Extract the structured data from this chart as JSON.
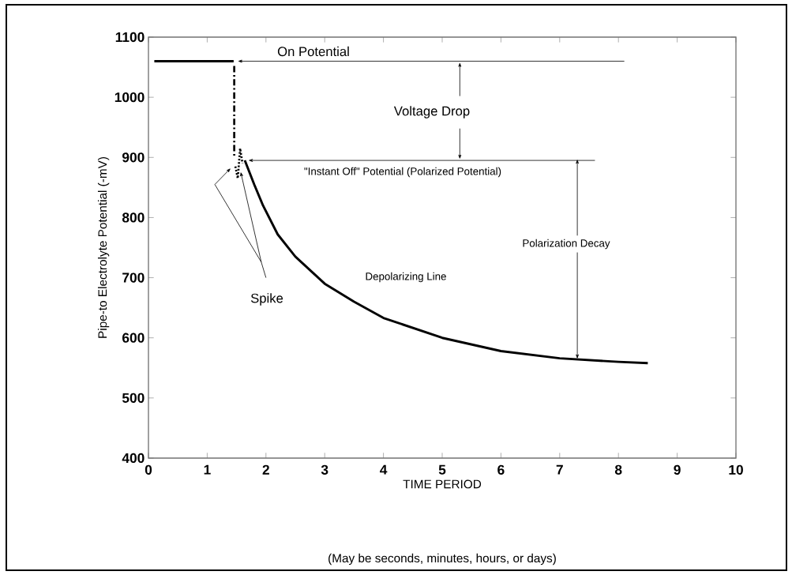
{
  "chart_data": {
    "type": "line",
    "xlabel": "TIME PERIOD",
    "ylabel": "Pipe-to Electrolyte Potential (-mV)",
    "xlim": [
      0,
      10
    ],
    "ylim": [
      400,
      1100
    ],
    "xticks": [
      0,
      1,
      2,
      3,
      4,
      5,
      6,
      7,
      8,
      9,
      10
    ],
    "yticks": [
      400,
      500,
      600,
      700,
      800,
      900,
      1000,
      1100
    ],
    "marker": "none",
    "series": [
      {
        "color": "#000000",
        "line_style": "solid",
        "x": [
          0.1,
          1.45
        ],
        "values": [
          1060,
          1060
        ]
      },
      {
        "color": "#000000",
        "line_style": "dashed",
        "x": [
          1.46,
          1.46
        ],
        "values": [
          1052,
          900
        ]
      },
      {
        "color": "#000000",
        "line_style": "dotted",
        "x": [
          1.48,
          1.52,
          1.56,
          1.6
        ],
        "values": [
          885,
          865,
          915,
          890
        ]
      },
      {
        "color": "#000000",
        "line_style": "solid",
        "x": [
          1.64,
          1.8,
          1.95,
          2.2,
          2.5,
          3,
          3.5,
          4,
          5,
          6,
          7,
          8,
          8.5
        ],
        "values": [
          895,
          855,
          820,
          772,
          735,
          690,
          660,
          633,
          600,
          578,
          566,
          560,
          558
        ]
      }
    ],
    "annotations": [
      "On Potential",
      "Voltage Drop",
      "\"Instant Off\" Potential (Polarized Potential)",
      {
        "text": "Polarization Decay",
        "x": 7.3,
        "y": 565
      },
      "Depolarizing Line",
      "Spike",
      "(May be seconds, minutes, hours, or days)"
    ]
  }
}
